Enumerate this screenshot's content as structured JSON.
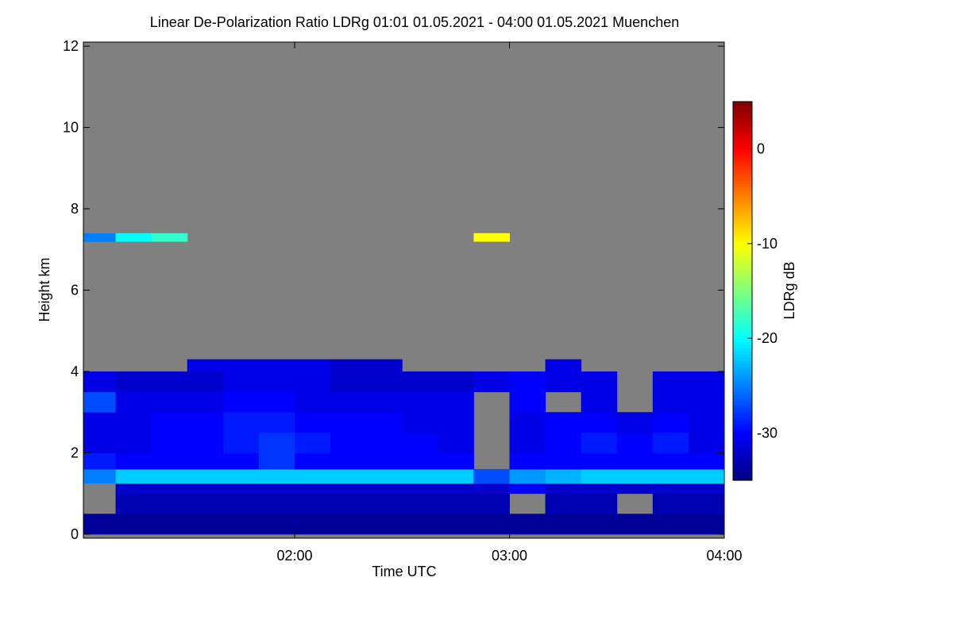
{
  "chart_data": {
    "type": "heatmap",
    "title": "Linear De-Polarization Ratio LDRg   01:01 01.05.2021 - 04:00 01.05.2021 Muenchen",
    "x_label": "Time UTC",
    "y_label": "Height km",
    "colorbar_label": "LDRg dB",
    "x_edges": [
      1.0167,
      1.1667,
      1.3333,
      1.5,
      1.6667,
      1.8333,
      2,
      2.1667,
      2.3333,
      2.5,
      2.6667,
      2.8333,
      3,
      3.1667,
      3.3333,
      3.5,
      3.6667,
      3.8333,
      4
    ],
    "y_edges": [
      0,
      0.5,
      1,
      1.25,
      1.6,
      2,
      2.5,
      3,
      3.5,
      4,
      4.3,
      7.2,
      7.4
    ],
    "values": [
      [
        -34,
        -34,
        -34,
        -34,
        -34,
        -34,
        -34,
        -34,
        -34,
        -34,
        -34,
        -34,
        -34,
        -34,
        -34,
        -34,
        -34,
        -34
      ],
      [
        null,
        -33,
        -33,
        -33,
        -33,
        -33,
        -33,
        -33,
        -33,
        -33,
        -33,
        -33,
        null,
        -33,
        -33,
        null,
        -33,
        -33
      ],
      [
        null,
        -32,
        -32,
        -32,
        -32,
        -32,
        -32,
        -32,
        -32,
        -32,
        -32,
        -32,
        -30,
        -32,
        -32,
        -32,
        -32,
        -32
      ],
      [
        -25,
        -22,
        -22,
        -22,
        -22,
        -22,
        -22,
        -22,
        -22,
        -22,
        -22,
        -27,
        -24,
        -23,
        -22,
        -22,
        -22,
        -22
      ],
      [
        -29,
        -30,
        -30,
        -30,
        -30,
        -28,
        -30,
        -30,
        -30,
        -30,
        -30,
        null,
        -30,
        -30,
        -30,
        -30,
        -30,
        -30
      ],
      [
        -31,
        -31,
        -30,
        -30,
        -29,
        -28,
        -29,
        -30,
        -30,
        -30,
        -31,
        null,
        -31,
        -30,
        -29,
        -30,
        -29,
        -31
      ],
      [
        -31,
        -31,
        -30,
        -30,
        -29,
        -29,
        -30,
        -30,
        -30,
        -31,
        -31,
        null,
        -31,
        -30,
        -30,
        -31,
        -30,
        -31
      ],
      [
        -27,
        -31,
        -31,
        -31,
        -30,
        -30,
        -31,
        -31,
        -31,
        -31,
        -31,
        null,
        -30,
        null,
        -31,
        null,
        -31,
        -31
      ],
      [
        -31,
        -32,
        -32,
        -32,
        -31,
        -31,
        -31,
        -32,
        -32,
        -32,
        -32,
        -31,
        -30,
        -31,
        -31,
        null,
        -31,
        -31
      ],
      [
        null,
        null,
        null,
        -31,
        -31,
        -31,
        -31,
        -32,
        -32,
        null,
        null,
        null,
        null,
        -31,
        null,
        null,
        null,
        null
      ],
      [
        null,
        null,
        null,
        null,
        null,
        null,
        null,
        null,
        null,
        null,
        null,
        null,
        null,
        null,
        null,
        null,
        null,
        null
      ],
      [
        -25,
        -20,
        -18,
        null,
        null,
        null,
        null,
        null,
        null,
        null,
        null,
        -10,
        null,
        null,
        null,
        null,
        null,
        null
      ]
    ],
    "no_data_color": "#808080",
    "colormap": "jet",
    "xlim": [
      1.0167,
      4
    ],
    "xticks": [
      {
        "value": 2,
        "label": "02:00"
      },
      {
        "value": 3,
        "label": "03:00"
      },
      {
        "value": 4,
        "label": "04:00"
      }
    ],
    "ylim": [
      -0.1,
      12.1
    ],
    "yticks": [
      0,
      2,
      4,
      6,
      8,
      10,
      12
    ],
    "clim": [
      -35,
      5
    ],
    "cticks": [
      0,
      -10,
      -20,
      -30
    ]
  }
}
